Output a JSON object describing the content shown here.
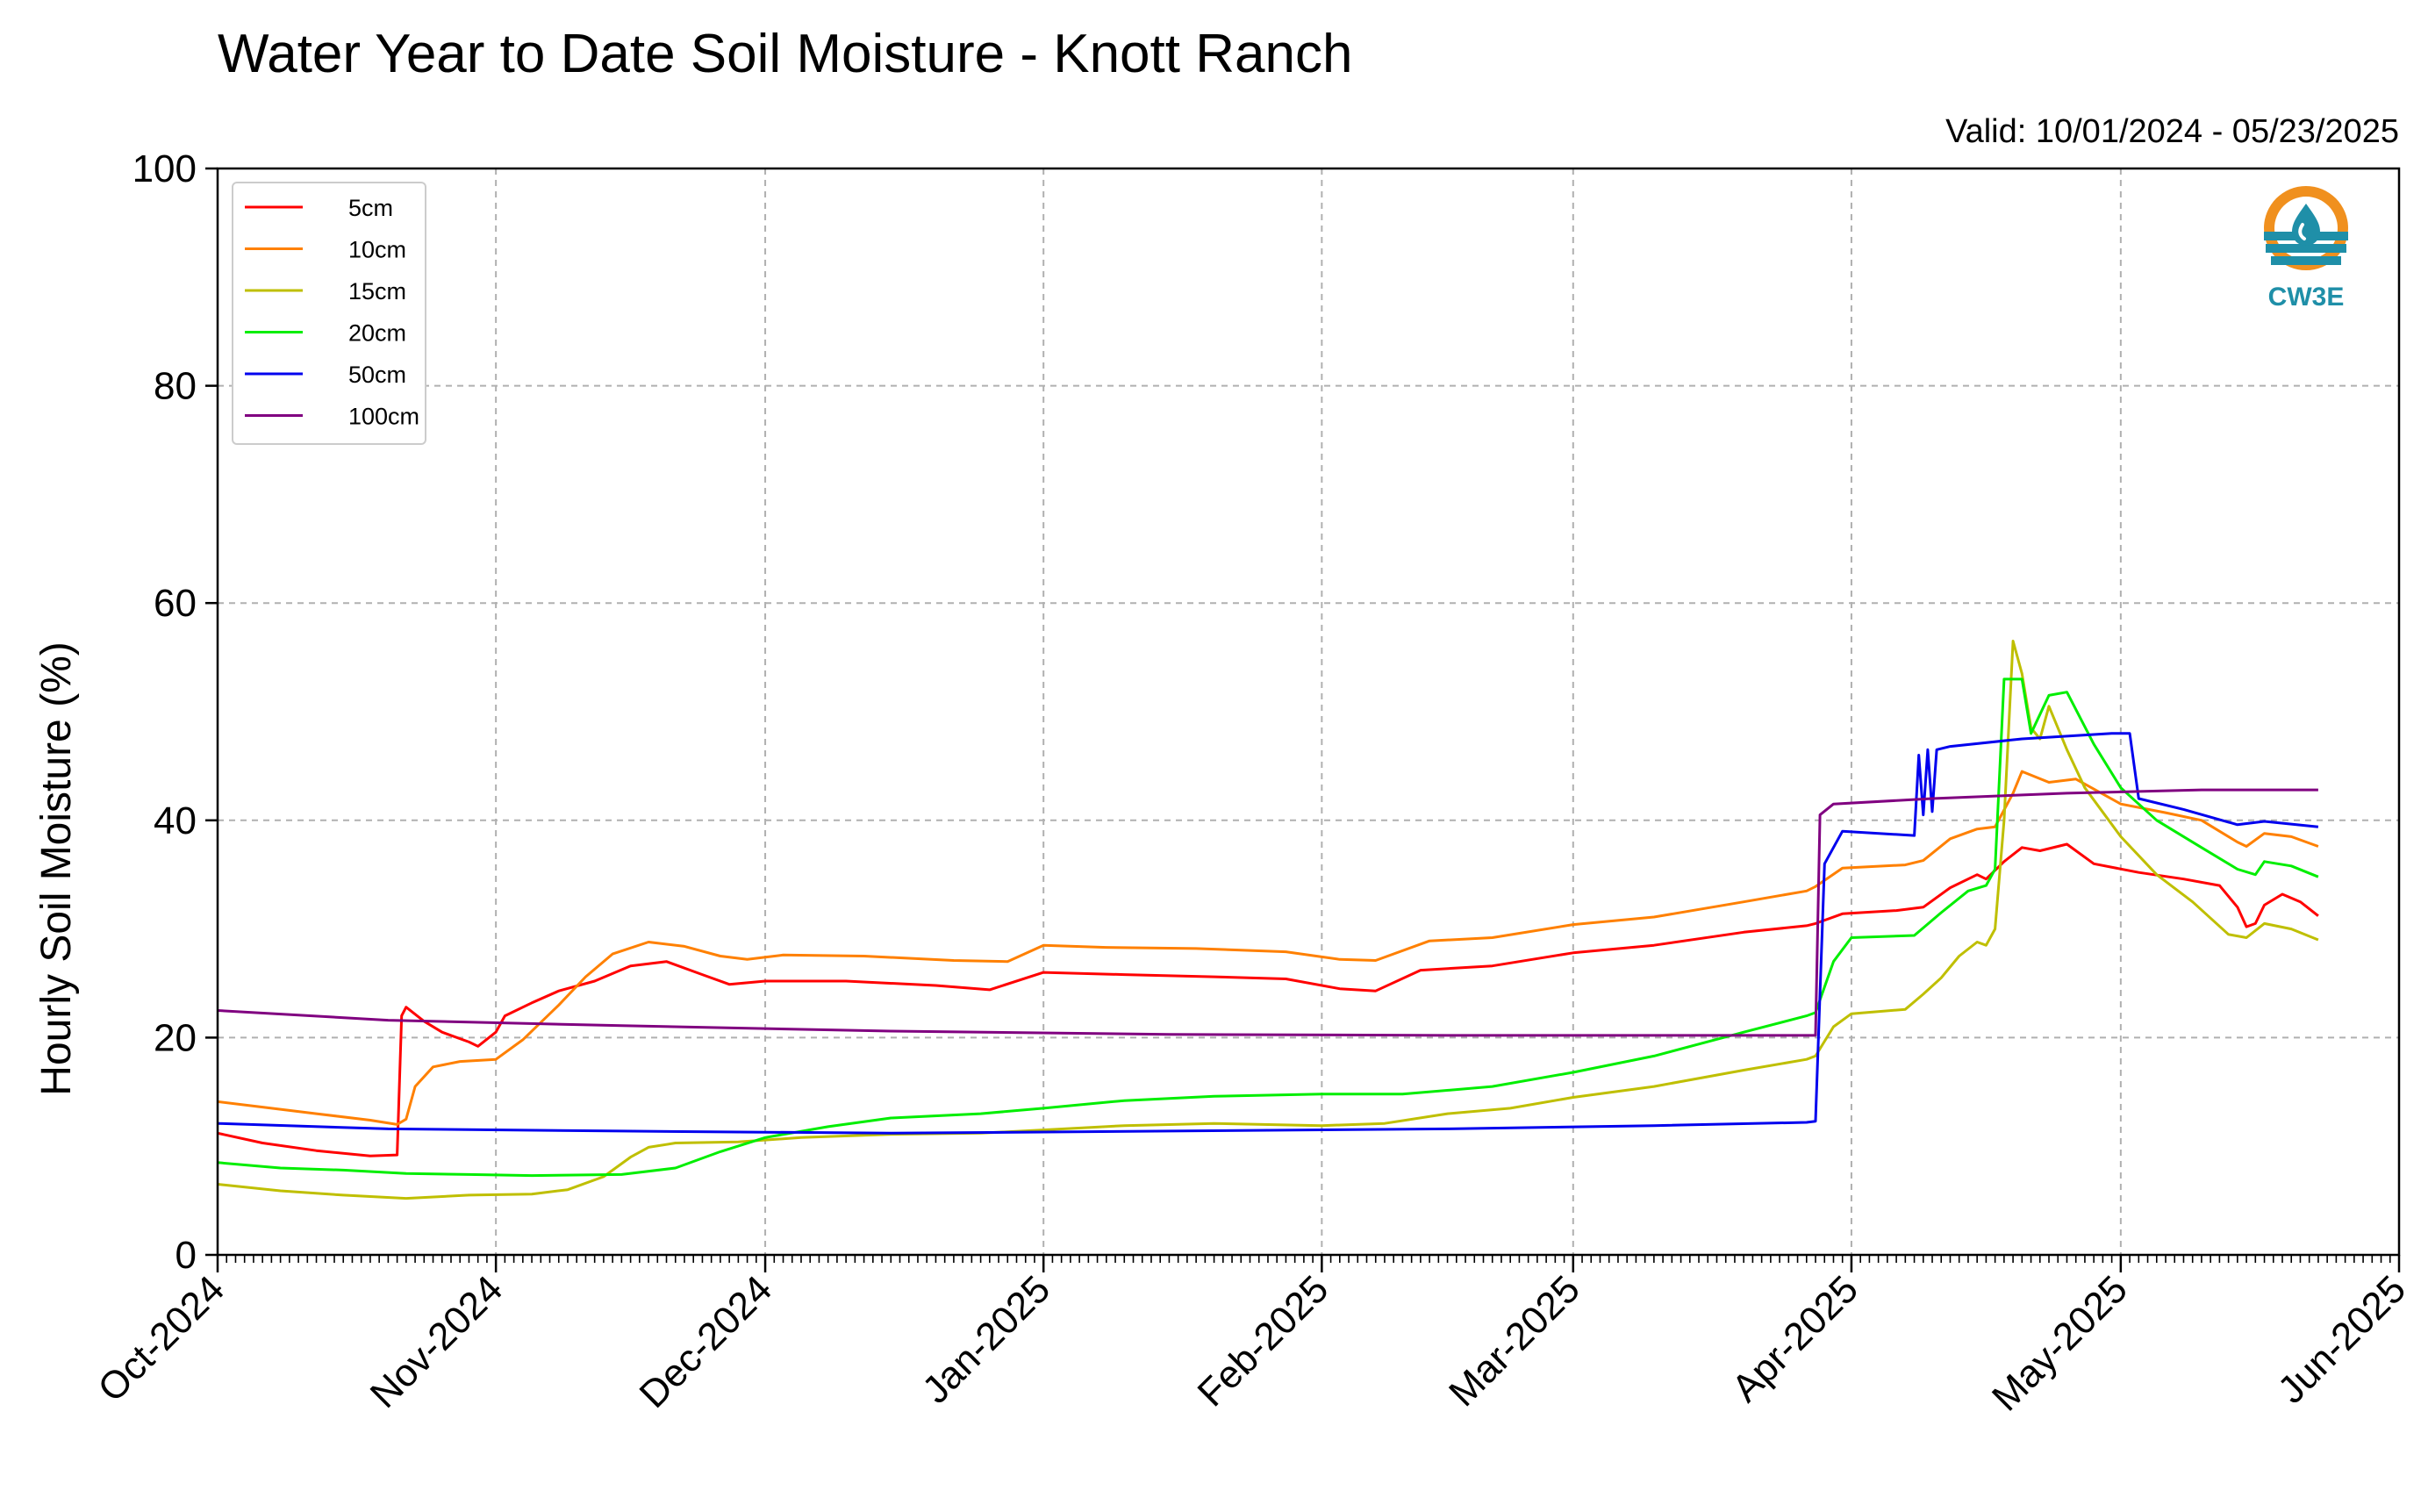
{
  "colors": {
    "background": "#ffffff",
    "axis": "#000000",
    "grid": "#b0b0b0",
    "logo_orange": "#f0901e",
    "logo_teal": "#1f8fa8"
  },
  "logo": {
    "text": "CW3E",
    "icon": "water-drop-sun-logo"
  },
  "chart_data": {
    "type": "line",
    "title": "Water Year to Date Soil Moisture - Knott Ranch",
    "subtitle": "Valid: 10/01/2024 - 05/23/2025",
    "xlabel": "",
    "ylabel": "Hourly Soil Moisture (%)",
    "xlim": [
      "2024-10-01",
      "2025-06-01"
    ],
    "ylim": [
      0,
      100
    ],
    "yticks": [
      0,
      20,
      40,
      60,
      80,
      100
    ],
    "xticks": [
      {
        "date": "2024-10-01",
        "label": "Oct-2024"
      },
      {
        "date": "2024-11-01",
        "label": "Nov-2024"
      },
      {
        "date": "2024-12-01",
        "label": "Dec-2024"
      },
      {
        "date": "2025-01-01",
        "label": "Jan-2025"
      },
      {
        "date": "2025-02-01",
        "label": "Feb-2025"
      },
      {
        "date": "2025-03-01",
        "label": "Mar-2025"
      },
      {
        "date": "2025-04-01",
        "label": "Apr-2025"
      },
      {
        "date": "2025-05-01",
        "label": "May-2025"
      },
      {
        "date": "2025-06-01",
        "label": "Jun-2025"
      }
    ],
    "grid": true,
    "legend_position": "top-left",
    "series": [
      {
        "name": "5cm",
        "color": "#ff0000",
        "points": [
          [
            "2024-10-01",
            11.2
          ],
          [
            "2024-10-06",
            10.3
          ],
          [
            "2024-10-12",
            9.6
          ],
          [
            "2024-10-18",
            9.1
          ],
          [
            "2024-10-21",
            9.2
          ],
          [
            "2024-10-21T12",
            22.0
          ],
          [
            "2024-10-22",
            22.8
          ],
          [
            "2024-10-24",
            21.5
          ],
          [
            "2024-10-26",
            20.5
          ],
          [
            "2024-10-29",
            19.6
          ],
          [
            "2024-10-30",
            19.2
          ],
          [
            "2024-11-01",
            20.5
          ],
          [
            "2024-11-02",
            22.0
          ],
          [
            "2024-11-05",
            23.2
          ],
          [
            "2024-11-08",
            24.3
          ],
          [
            "2024-11-12",
            25.2
          ],
          [
            "2024-11-16",
            26.6
          ],
          [
            "2024-11-20",
            27.0
          ],
          [
            "2024-11-24",
            25.8
          ],
          [
            "2024-11-27",
            24.9
          ],
          [
            "2024-12-01",
            25.2
          ],
          [
            "2024-12-10",
            25.2
          ],
          [
            "2024-12-20",
            24.8
          ],
          [
            "2024-12-26",
            24.4
          ],
          [
            "2025-01-01",
            26.0
          ],
          [
            "2025-01-10",
            25.8
          ],
          [
            "2025-01-20",
            25.6
          ],
          [
            "2025-01-28",
            25.4
          ],
          [
            "2025-02-03",
            24.5
          ],
          [
            "2025-02-07",
            24.3
          ],
          [
            "2025-02-12",
            26.2
          ],
          [
            "2025-02-20",
            26.6
          ],
          [
            "2025-03-01",
            27.8
          ],
          [
            "2025-03-10",
            28.5
          ],
          [
            "2025-03-20",
            29.7
          ],
          [
            "2025-03-27",
            30.3
          ],
          [
            "2025-03-28",
            30.5
          ],
          [
            "2025-03-31",
            31.4
          ],
          [
            "2025-04-06",
            31.7
          ],
          [
            "2025-04-09",
            32.0
          ],
          [
            "2025-04-12",
            33.8
          ],
          [
            "2025-04-15",
            35.0
          ],
          [
            "2025-04-16",
            34.6
          ],
          [
            "2025-04-18",
            36.2
          ],
          [
            "2025-04-20",
            37.5
          ],
          [
            "2025-04-22",
            37.2
          ],
          [
            "2025-04-25",
            37.8
          ],
          [
            "2025-04-28",
            36.0
          ],
          [
            "2025-05-03",
            35.2
          ],
          [
            "2025-05-08",
            34.6
          ],
          [
            "2025-05-12",
            34.0
          ],
          [
            "2025-05-14",
            32.0
          ],
          [
            "2025-05-15",
            30.2
          ],
          [
            "2025-05-16",
            30.5
          ],
          [
            "2025-05-17",
            32.2
          ],
          [
            "2025-05-19",
            33.2
          ],
          [
            "2025-05-21",
            32.5
          ],
          [
            "2025-05-23",
            31.2
          ]
        ]
      },
      {
        "name": "10cm",
        "color": "#ff8000",
        "points": [
          [
            "2024-10-01",
            14.1
          ],
          [
            "2024-10-06",
            13.6
          ],
          [
            "2024-10-12",
            13.0
          ],
          [
            "2024-10-18",
            12.4
          ],
          [
            "2024-10-21",
            12.0
          ],
          [
            "2024-10-22",
            12.5
          ],
          [
            "2024-10-23",
            15.5
          ],
          [
            "2024-10-25",
            17.3
          ],
          [
            "2024-10-28",
            17.8
          ],
          [
            "2024-11-01",
            18.0
          ],
          [
            "2024-11-04",
            19.8
          ],
          [
            "2024-11-08",
            23.0
          ],
          [
            "2024-11-11",
            25.6
          ],
          [
            "2024-11-14",
            27.7
          ],
          [
            "2024-11-18",
            28.8
          ],
          [
            "2024-11-22",
            28.4
          ],
          [
            "2024-11-26",
            27.5
          ],
          [
            "2024-11-29",
            27.2
          ],
          [
            "2024-12-03",
            27.6
          ],
          [
            "2024-12-12",
            27.5
          ],
          [
            "2024-12-22",
            27.1
          ],
          [
            "2024-12-28",
            27.0
          ],
          [
            "2025-01-01",
            28.5
          ],
          [
            "2025-01-08",
            28.3
          ],
          [
            "2025-01-18",
            28.2
          ],
          [
            "2025-01-28",
            27.9
          ],
          [
            "2025-02-03",
            27.2
          ],
          [
            "2025-02-07",
            27.1
          ],
          [
            "2025-02-13",
            28.9
          ],
          [
            "2025-02-20",
            29.2
          ],
          [
            "2025-03-01",
            30.4
          ],
          [
            "2025-03-10",
            31.1
          ],
          [
            "2025-03-20",
            32.5
          ],
          [
            "2025-03-27",
            33.5
          ],
          [
            "2025-03-28",
            33.9
          ],
          [
            "2025-03-31",
            35.6
          ],
          [
            "2025-04-07",
            35.9
          ],
          [
            "2025-04-09",
            36.3
          ],
          [
            "2025-04-12",
            38.3
          ],
          [
            "2025-04-15",
            39.2
          ],
          [
            "2025-04-17",
            39.4
          ],
          [
            "2025-04-19",
            42.5
          ],
          [
            "2025-04-20",
            44.5
          ],
          [
            "2025-04-23",
            43.5
          ],
          [
            "2025-04-26",
            43.8
          ],
          [
            "2025-05-01",
            41.5
          ],
          [
            "2025-05-06",
            40.7
          ],
          [
            "2025-05-10",
            40.0
          ],
          [
            "2025-05-14",
            38.0
          ],
          [
            "2025-05-15",
            37.6
          ],
          [
            "2025-05-17",
            38.8
          ],
          [
            "2025-05-20",
            38.5
          ],
          [
            "2025-05-23",
            37.6
          ]
        ]
      },
      {
        "name": "15cm",
        "color": "#bfbf00",
        "points": [
          [
            "2024-10-01",
            6.5
          ],
          [
            "2024-10-08",
            5.9
          ],
          [
            "2024-10-15",
            5.5
          ],
          [
            "2024-10-22",
            5.2
          ],
          [
            "2024-10-29",
            5.5
          ],
          [
            "2024-11-05",
            5.6
          ],
          [
            "2024-11-09",
            6.0
          ],
          [
            "2024-11-13",
            7.2
          ],
          [
            "2024-11-16",
            9.0
          ],
          [
            "2024-11-18",
            9.9
          ],
          [
            "2024-11-21",
            10.3
          ],
          [
            "2024-11-28",
            10.4
          ],
          [
            "2024-12-05",
            10.8
          ],
          [
            "2024-12-15",
            11.1
          ],
          [
            "2024-12-25",
            11.2
          ],
          [
            "2025-01-01",
            11.5
          ],
          [
            "2025-01-10",
            11.9
          ],
          [
            "2025-01-20",
            12.1
          ],
          [
            "2025-02-01",
            11.9
          ],
          [
            "2025-02-08",
            12.1
          ],
          [
            "2025-02-15",
            13.0
          ],
          [
            "2025-02-22",
            13.5
          ],
          [
            "2025-03-01",
            14.5
          ],
          [
            "2025-03-10",
            15.5
          ],
          [
            "2025-03-20",
            17.0
          ],
          [
            "2025-03-27",
            18.0
          ],
          [
            "2025-03-28",
            18.3
          ],
          [
            "2025-03-30",
            21.0
          ],
          [
            "2025-04-01",
            22.2
          ],
          [
            "2025-04-07",
            22.6
          ],
          [
            "2025-04-09",
            24.0
          ],
          [
            "2025-04-11",
            25.5
          ],
          [
            "2025-04-13",
            27.5
          ],
          [
            "2025-04-15",
            28.8
          ],
          [
            "2025-04-16",
            28.5
          ],
          [
            "2025-04-17",
            30.0
          ],
          [
            "2025-04-18",
            40.0
          ],
          [
            "2025-04-19",
            56.5
          ],
          [
            "2025-04-20",
            53.5
          ],
          [
            "2025-04-21",
            48.5
          ],
          [
            "2025-04-22",
            47.5
          ],
          [
            "2025-04-23",
            50.5
          ],
          [
            "2025-04-25",
            46.5
          ],
          [
            "2025-04-27",
            43.0
          ],
          [
            "2025-05-01",
            38.5
          ],
          [
            "2025-05-05",
            35.0
          ],
          [
            "2025-05-09",
            32.5
          ],
          [
            "2025-05-13",
            29.5
          ],
          [
            "2025-05-15",
            29.2
          ],
          [
            "2025-05-17",
            30.5
          ],
          [
            "2025-05-20",
            30.0
          ],
          [
            "2025-05-23",
            29.0
          ]
        ]
      },
      {
        "name": "20cm",
        "color": "#00ee00",
        "points": [
          [
            "2024-10-01",
            8.5
          ],
          [
            "2024-10-08",
            8.0
          ],
          [
            "2024-10-15",
            7.8
          ],
          [
            "2024-10-22",
            7.5
          ],
          [
            "2024-10-29",
            7.4
          ],
          [
            "2024-11-05",
            7.3
          ],
          [
            "2024-11-15",
            7.4
          ],
          [
            "2024-11-21",
            8.0
          ],
          [
            "2024-11-26",
            9.5
          ],
          [
            "2024-12-01",
            10.8
          ],
          [
            "2024-12-08",
            11.8
          ],
          [
            "2024-12-15",
            12.6
          ],
          [
            "2024-12-25",
            13.0
          ],
          [
            "2025-01-01",
            13.5
          ],
          [
            "2025-01-10",
            14.2
          ],
          [
            "2025-01-20",
            14.6
          ],
          [
            "2025-02-01",
            14.8
          ],
          [
            "2025-02-10",
            14.8
          ],
          [
            "2025-02-20",
            15.5
          ],
          [
            "2025-03-01",
            16.8
          ],
          [
            "2025-03-10",
            18.3
          ],
          [
            "2025-03-20",
            20.5
          ],
          [
            "2025-03-27",
            22.0
          ],
          [
            "2025-03-28",
            22.3
          ],
          [
            "2025-03-30",
            27.0
          ],
          [
            "2025-04-01",
            29.2
          ],
          [
            "2025-04-08",
            29.4
          ],
          [
            "2025-04-11",
            31.5
          ],
          [
            "2025-04-14",
            33.5
          ],
          [
            "2025-04-16",
            34.0
          ],
          [
            "2025-04-17",
            35.5
          ],
          [
            "2025-04-18",
            53.0
          ],
          [
            "2025-04-20",
            53.0
          ],
          [
            "2025-04-21",
            48.0
          ],
          [
            "2025-04-23",
            51.5
          ],
          [
            "2025-04-25",
            51.8
          ],
          [
            "2025-04-28",
            47.0
          ],
          [
            "2025-05-01",
            43.0
          ],
          [
            "2025-05-05",
            40.0
          ],
          [
            "2025-05-10",
            37.5
          ],
          [
            "2025-05-14",
            35.5
          ],
          [
            "2025-05-16",
            35.0
          ],
          [
            "2025-05-17",
            36.2
          ],
          [
            "2025-05-20",
            35.8
          ],
          [
            "2025-05-23",
            34.8
          ]
        ]
      },
      {
        "name": "50cm",
        "color": "#0000ee",
        "points": [
          [
            "2024-10-01",
            12.1
          ],
          [
            "2024-10-20",
            11.6
          ],
          [
            "2024-11-15",
            11.4
          ],
          [
            "2024-12-15",
            11.2
          ],
          [
            "2025-01-15",
            11.4
          ],
          [
            "2025-02-15",
            11.6
          ],
          [
            "2025-03-10",
            11.9
          ],
          [
            "2025-03-27",
            12.2
          ],
          [
            "2025-03-28",
            12.3
          ],
          [
            "2025-03-29",
            36.0
          ],
          [
            "2025-03-31",
            39.0
          ],
          [
            "2025-04-06",
            38.7
          ],
          [
            "2025-04-08",
            38.6
          ],
          [
            "2025-04-08T12",
            46.0
          ],
          [
            "2025-04-09",
            40.5
          ],
          [
            "2025-04-09T12",
            46.5
          ],
          [
            "2025-04-10",
            40.8
          ],
          [
            "2025-04-10T12",
            46.5
          ],
          [
            "2025-04-12",
            46.8
          ],
          [
            "2025-04-20",
            47.5
          ],
          [
            "2025-04-30",
            48.0
          ],
          [
            "2025-05-02",
            48.0
          ],
          [
            "2025-05-03",
            42.0
          ],
          [
            "2025-05-08",
            41.0
          ],
          [
            "2025-05-14",
            39.6
          ],
          [
            "2025-05-17",
            39.9
          ],
          [
            "2025-05-23",
            39.4
          ]
        ]
      },
      {
        "name": "100cm",
        "color": "#800080",
        "points": [
          [
            "2024-10-01",
            22.5
          ],
          [
            "2024-10-20",
            21.6
          ],
          [
            "2024-11-15",
            21.1
          ],
          [
            "2024-12-15",
            20.6
          ],
          [
            "2025-01-15",
            20.3
          ],
          [
            "2025-02-15",
            20.2
          ],
          [
            "2025-03-27",
            20.2
          ],
          [
            "2025-03-28",
            20.2
          ],
          [
            "2025-03-28T12",
            40.5
          ],
          [
            "2025-03-30",
            41.5
          ],
          [
            "2025-04-10",
            42.0
          ],
          [
            "2025-04-25",
            42.5
          ],
          [
            "2025-05-10",
            42.8
          ],
          [
            "2025-05-23",
            42.8
          ]
        ]
      }
    ]
  }
}
